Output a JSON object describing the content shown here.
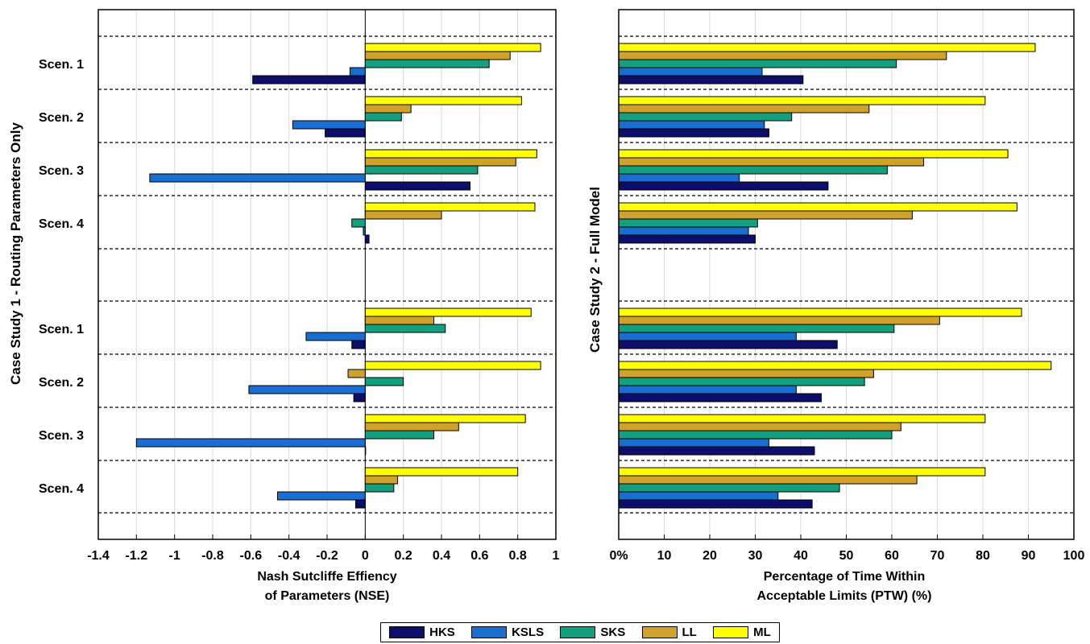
{
  "legend": {
    "items": [
      {
        "label": "HKS",
        "color": "#0d0d6b"
      },
      {
        "label": "KSLS",
        "color": "#1a6ed1"
      },
      {
        "label": "SKS",
        "color": "#13a07f"
      },
      {
        "label": "LL",
        "color": "#d1a22b"
      },
      {
        "label": "ML",
        "color": "#ffff00"
      }
    ]
  },
  "case_labels": {
    "left": "Case Study 1 - Routing Parameters Only",
    "right": "Case Study 2 - Full Model"
  },
  "chart_data": [
    {
      "type": "bar",
      "orientation": "horizontal",
      "xlabel": [
        "Nash Sutcliffe Effiency",
        "of Parameters (NSE)"
      ],
      "xlim": [
        -1.4,
        1
      ],
      "xticks": [
        -1.4,
        -1.2,
        -1,
        -0.8,
        -0.6,
        -0.4,
        -0.2,
        0,
        0.2,
        0.4,
        0.6,
        0.8,
        1
      ],
      "xtick_labels": [
        "-1.4",
        "-1.2",
        "-1",
        "-0.8",
        "-0.6",
        "-0.4",
        "-0.2",
        "0",
        "0.2",
        "0.4",
        "0.6",
        "0.8",
        "1"
      ],
      "grid": "vertical",
      "groups": [
        "Scen. 1",
        "Scen. 2",
        "Scen. 3",
        "Scen. 4",
        "Scen. 1",
        "Scen. 2",
        "Scen. 3",
        "Scen. 4"
      ],
      "series": [
        {
          "name": "HKS",
          "values": [
            -0.59,
            -0.21,
            0.55,
            0.02,
            -0.07,
            -0.06,
            0.0,
            -0.05
          ]
        },
        {
          "name": "KSLS",
          "values": [
            -0.08,
            -0.38,
            -1.13,
            -0.01,
            -0.31,
            -0.61,
            -1.2,
            -0.46
          ]
        },
        {
          "name": "SKS",
          "values": [
            0.65,
            0.19,
            0.59,
            -0.07,
            0.42,
            0.2,
            0.36,
            0.15
          ]
        },
        {
          "name": "LL",
          "values": [
            0.76,
            0.24,
            0.79,
            0.4,
            0.36,
            -0.09,
            0.49,
            0.17
          ]
        },
        {
          "name": "ML",
          "values": [
            0.92,
            0.82,
            0.9,
            0.89,
            0.87,
            0.92,
            0.84,
            0.8
          ]
        }
      ]
    },
    {
      "type": "bar",
      "orientation": "horizontal",
      "xlabel": [
        "Percentage of Time Within",
        "Acceptable Limits (PTW) (%)"
      ],
      "xlim": [
        0,
        100
      ],
      "xticks": [
        0,
        10,
        20,
        30,
        40,
        50,
        60,
        70,
        80,
        90,
        100
      ],
      "xtick_labels": [
        "0%",
        "10",
        "20",
        "30",
        "40",
        "50",
        "60",
        "70",
        "80",
        "90",
        "100"
      ],
      "grid": "vertical",
      "groups": [
        "",
        "",
        "",
        "",
        "",
        "",
        "",
        ""
      ],
      "series": [
        {
          "name": "HKS",
          "values": [
            40.5,
            33,
            46,
            30,
            48,
            44.5,
            43,
            42.5
          ]
        },
        {
          "name": "KSLS",
          "values": [
            31.5,
            32,
            26.5,
            28.5,
            39,
            39,
            33,
            35
          ]
        },
        {
          "name": "SKS",
          "values": [
            61,
            38,
            59,
            30.5,
            60.5,
            54,
            60,
            48.5
          ]
        },
        {
          "name": "LL",
          "values": [
            72,
            55,
            67,
            64.5,
            70.5,
            56,
            62,
            65.5
          ]
        },
        {
          "name": "ML",
          "values": [
            91.5,
            80.5,
            85.5,
            87.5,
            88.5,
            95,
            80.5,
            80.5
          ]
        }
      ]
    }
  ]
}
